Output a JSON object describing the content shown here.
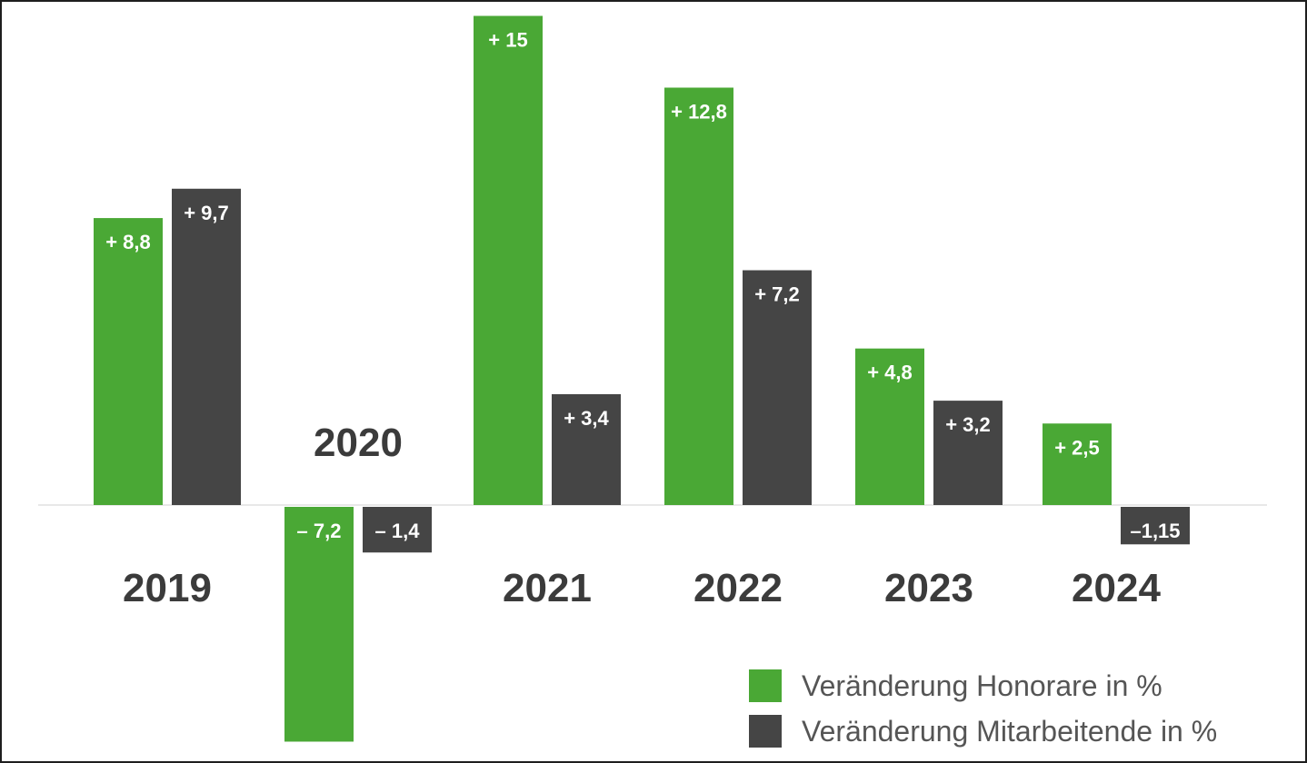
{
  "chart_data": {
    "type": "bar",
    "categories": [
      "2019",
      "2020",
      "2021",
      "2022",
      "2023",
      "2024"
    ],
    "series": [
      {
        "name": "Veränderung Honorare in %",
        "color": "#4aa835",
        "values": [
          8.8,
          -7.2,
          15,
          12.8,
          4.8,
          2.5
        ],
        "labels": [
          "+ 8,8",
          "– 7,2",
          "+ 15",
          "+ 12,8",
          "+ 4,8",
          "+ 2,5"
        ]
      },
      {
        "name": "Veränderung Mitarbeitende in %",
        "color": "#454545",
        "values": [
          9.7,
          -1.4,
          3.4,
          7.2,
          3.2,
          -1.15
        ],
        "labels": [
          "+ 9,7",
          "– 1,4",
          "+ 3,4",
          "+ 7,2",
          "+ 3,2",
          "–1,15"
        ]
      }
    ],
    "ylim": [
      -7.2,
      15
    ],
    "grid": false,
    "legend_position": "bottom-right",
    "title": "",
    "xlabel": "",
    "ylabel": ""
  }
}
